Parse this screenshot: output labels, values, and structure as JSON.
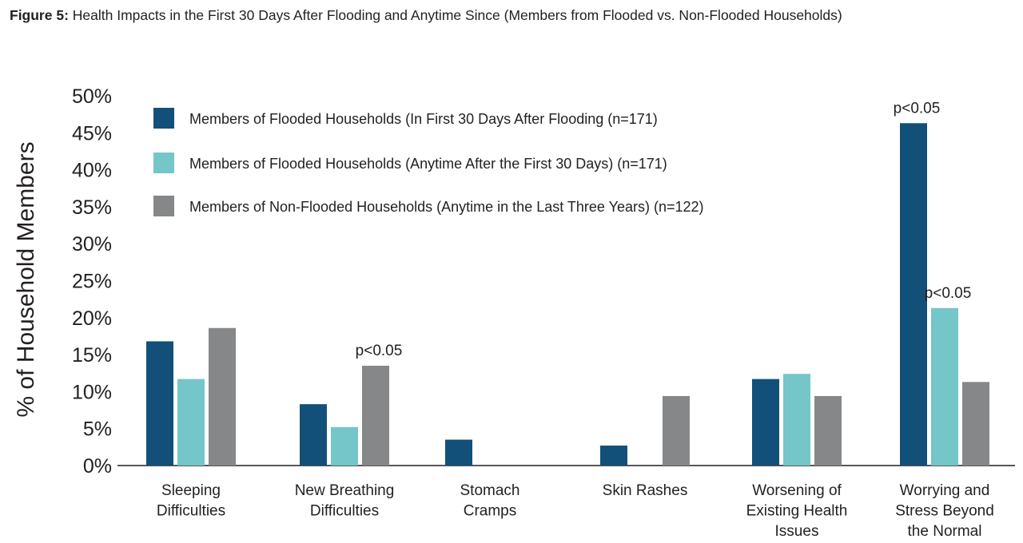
{
  "title": {
    "label": "Figure 5:",
    "text": "Health Impacts in the First 30 Days After Flooding and Anytime Since (Members from Flooded vs. Non-Flooded Households)"
  },
  "colors": {
    "flooded_30": "#12507a",
    "flooded_after": "#74c6c8",
    "non_flooded": "#858789",
    "axis": "#231f20"
  },
  "chart_data": {
    "type": "bar",
    "ylabel": "% of Household Members",
    "ylim": [
      0,
      50
    ],
    "yticks": [
      "0%",
      "5%",
      "10%",
      "15%",
      "20%",
      "25%",
      "30%",
      "35%",
      "40%",
      "45%",
      "50%"
    ],
    "categories": [
      [
        "Sleeping",
        "Difficulties"
      ],
      [
        "New Breathing",
        "Difficulties"
      ],
      [
        "Stomach",
        "Cramps"
      ],
      [
        "Skin Rashes"
      ],
      [
        "Worsening of",
        "Existing Health",
        "Issues"
      ],
      [
        "Worrying and",
        "Stress Beyond",
        "the Normal"
      ]
    ],
    "series": [
      {
        "name": "Members of Flooded Households (In First 30 Days After Flooding (n=171)",
        "color_key": "flooded_30",
        "values": [
          16.8,
          8.3,
          3.5,
          2.7,
          11.7,
          46.3
        ]
      },
      {
        "name": "Members of Flooded Households (Anytime After the First 30 Days) (n=171)",
        "color_key": "flooded_after",
        "values": [
          11.7,
          5.2,
          null,
          null,
          12.4,
          21.3
        ]
      },
      {
        "name": "Members of Non-Flooded Households (Anytime in the Last Three Years) (n=122)",
        "color_key": "non_flooded",
        "values": [
          18.6,
          13.5,
          null,
          9.4,
          9.4,
          11.3
        ]
      }
    ],
    "annotations": [
      {
        "text": "p<0.05",
        "category": 1,
        "series": 2
      },
      {
        "text": "p<0.05",
        "category": 5,
        "series": 0
      },
      {
        "text": "p<0.05",
        "category": 5,
        "series": 1
      }
    ],
    "legend_position": "top-left",
    "grid": false
  }
}
